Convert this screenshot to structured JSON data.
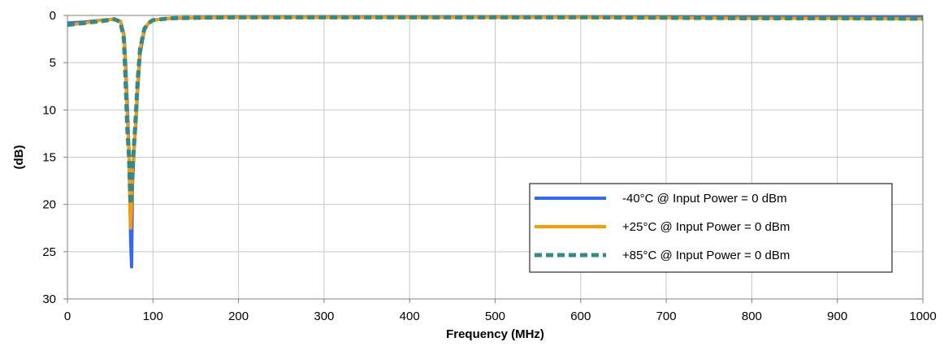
{
  "chart_data": {
    "type": "line",
    "title": "",
    "xlabel": "Frequency (MHz)",
    "ylabel": "(dB)",
    "xlim": [
      0,
      1000
    ],
    "ylim": [
      0,
      30
    ],
    "y_inverted": true,
    "xticks": [
      0,
      100,
      200,
      300,
      400,
      500,
      600,
      700,
      800,
      900,
      1000
    ],
    "yticks": [
      0,
      5,
      10,
      15,
      20,
      25,
      30
    ],
    "grid": true,
    "legend_position": "bottom-right",
    "series": [
      {
        "name": "-40°C @ Input Power = 0 dBm",
        "color": "#3366ff",
        "style": "solid",
        "x": [
          0,
          20,
          40,
          55,
          62,
          66,
          68,
          70,
          72,
          73,
          74,
          75,
          76,
          78,
          80,
          82,
          85,
          90,
          95,
          100,
          120,
          150,
          200,
          300,
          400,
          500,
          600,
          700,
          800,
          900,
          1000
        ],
        "y": [
          0.8,
          0.7,
          0.5,
          0.4,
          0.6,
          2.0,
          5.0,
          9.5,
          14.5,
          19.0,
          24.0,
          26.6,
          18.0,
          14.0,
          11.5,
          8.0,
          4.0,
          1.5,
          0.8,
          0.5,
          0.3,
          0.25,
          0.2,
          0.2,
          0.2,
          0.2,
          0.2,
          0.2,
          0.2,
          0.2,
          0.2
        ]
      },
      {
        "name": "+25°C @ Input Power = 0 dBm",
        "color": "#ff9900",
        "style": "solid",
        "x": [
          0,
          20,
          40,
          55,
          62,
          66,
          68,
          70,
          72,
          73,
          74,
          75,
          76,
          78,
          80,
          82,
          85,
          90,
          95,
          100,
          120,
          150,
          200,
          300,
          400,
          500,
          600,
          700,
          800,
          900,
          1000
        ],
        "y": [
          1.0,
          0.8,
          0.5,
          0.4,
          0.6,
          2.2,
          6.0,
          10.5,
          15.0,
          20.0,
          22.5,
          20.0,
          16.5,
          14.0,
          11.0,
          7.5,
          3.5,
          1.4,
          0.8,
          0.5,
          0.3,
          0.25,
          0.2,
          0.2,
          0.2,
          0.2,
          0.2,
          0.25,
          0.3,
          0.3,
          0.35
        ]
      },
      {
        "name": "+85°C @ Input Power = 0 dBm",
        "color": "#2f8c86",
        "style": "dashed",
        "x": [
          0,
          20,
          40,
          55,
          62,
          66,
          68,
          70,
          72,
          73,
          74,
          75,
          76,
          78,
          80,
          82,
          85,
          90,
          95,
          100,
          120,
          150,
          200,
          300,
          400,
          500,
          600,
          700,
          800,
          900,
          1000
        ],
        "y": [
          1.0,
          0.8,
          0.6,
          0.4,
          0.7,
          2.5,
          7.0,
          12.0,
          15.0,
          18.0,
          20.0,
          18.0,
          16.0,
          13.5,
          10.5,
          7.0,
          3.5,
          1.4,
          0.8,
          0.5,
          0.3,
          0.25,
          0.2,
          0.2,
          0.2,
          0.2,
          0.2,
          0.25,
          0.3,
          0.3,
          0.35
        ]
      }
    ]
  }
}
